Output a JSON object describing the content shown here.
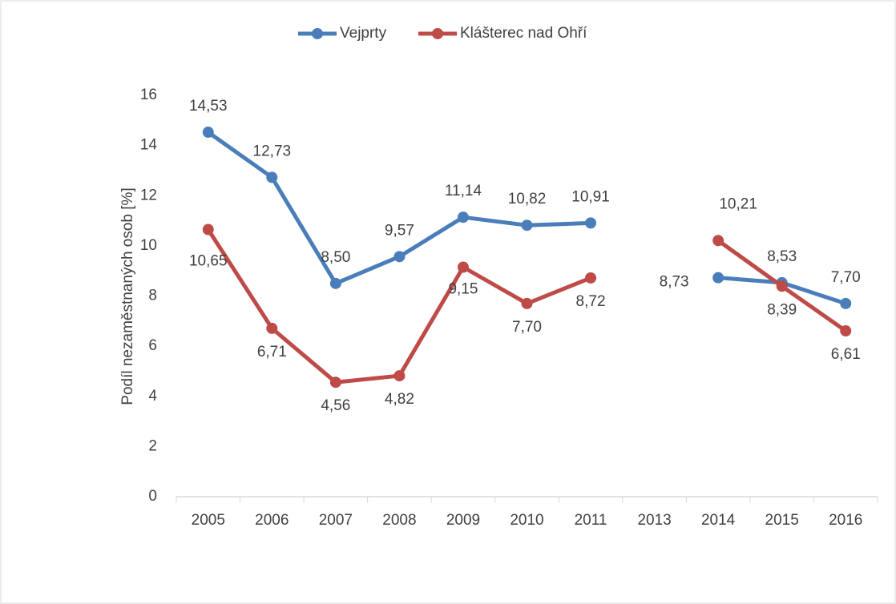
{
  "chart_data": {
    "type": "line",
    "y_label": "Podíl nezaměstnaných osob [%]",
    "categories": [
      "2005",
      "2006",
      "2007",
      "2008",
      "2009",
      "2010",
      "2011",
      "2013",
      "2014",
      "2015",
      "2016"
    ],
    "series": [
      {
        "name": "Vejprty",
        "color": "#4a7ebb",
        "values": [
          14.53,
          12.73,
          8.5,
          9.57,
          11.14,
          10.82,
          10.91,
          null,
          8.73,
          8.53,
          7.7
        ],
        "value_labels": [
          "14,53",
          "12,73",
          "8,50",
          "9,57",
          "11,14",
          "10,82",
          "10,91",
          null,
          "8,73",
          "8,53",
          "7,70"
        ]
      },
      {
        "name": "Klášterec nad Ohří",
        "color": "#be4b48",
        "values": [
          10.65,
          6.71,
          4.56,
          4.82,
          9.15,
          7.7,
          8.72,
          null,
          10.21,
          8.39,
          6.61
        ],
        "value_labels": [
          "10,65",
          "6,71",
          "4,56",
          "4,82",
          "9,15",
          "7,70",
          "8,72",
          null,
          "10,21",
          "8,39",
          "6,61"
        ]
      }
    ],
    "ylim": [
      0,
      16
    ],
    "yticks": [
      0,
      2,
      4,
      6,
      8,
      10,
      12,
      14,
      16
    ],
    "grid": false,
    "legend": "top"
  }
}
